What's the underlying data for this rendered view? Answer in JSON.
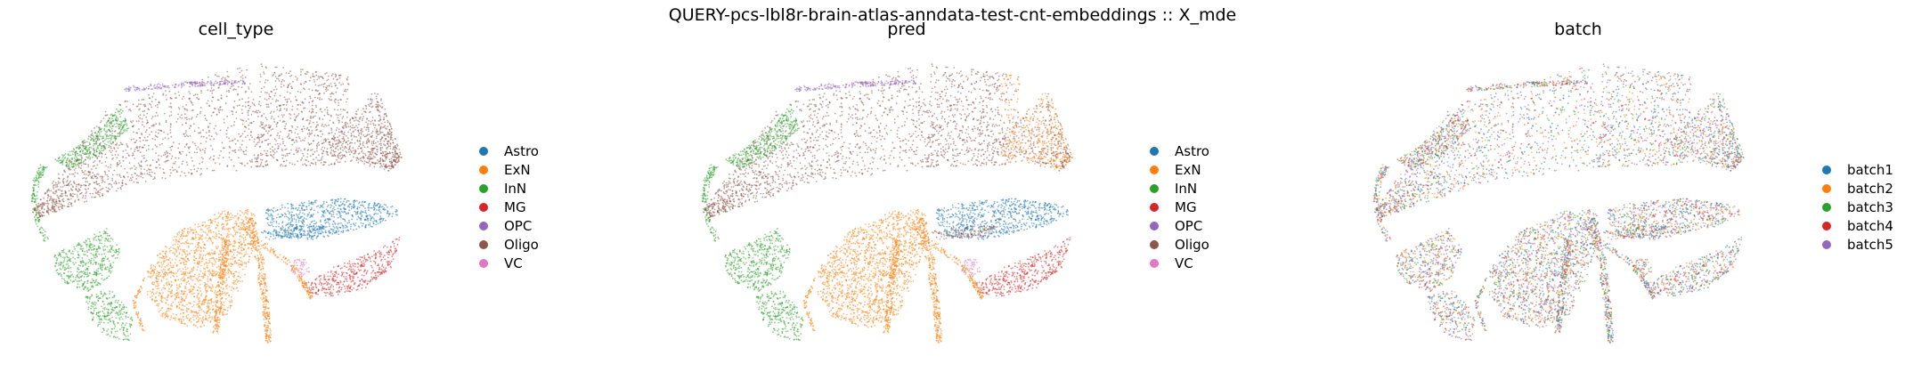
{
  "suptitle": "QUERY-pcs-lbl8r-brain-atlas-anndata-test-cnt-embeddings :: X_mde",
  "panels": [
    {
      "title": "cell_type",
      "legend": [
        "Astro",
        "ExN",
        "InN",
        "MG",
        "OPC",
        "Oligo",
        "VC"
      ]
    },
    {
      "title": "pred",
      "legend": [
        "Astro",
        "ExN",
        "InN",
        "MG",
        "OPC",
        "Oligo",
        "VC"
      ]
    },
    {
      "title": "batch",
      "legend": [
        "batch1",
        "batch2",
        "batch3",
        "batch4",
        "batch5"
      ]
    }
  ],
  "colors": {
    "Astro": "#1f77b4",
    "ExN": "#ff7f0e",
    "InN": "#2ca02c",
    "MG": "#d62728",
    "OPC": "#9467bd",
    "Oligo": "#8c564b",
    "VC": "#e377c2",
    "batch1": "#1f77b4",
    "batch2": "#ff7f0e",
    "batch3": "#2ca02c",
    "batch4": "#d62728",
    "batch5": "#9467bd"
  },
  "chart_data": [
    {
      "type": "scatter",
      "title": "cell_type",
      "color_by": "cell_type",
      "categories": [
        "Astro",
        "ExN",
        "InN",
        "MG",
        "OPC",
        "Oligo",
        "VC"
      ],
      "axes": "off",
      "legend": "right"
    },
    {
      "type": "scatter",
      "title": "pred",
      "color_by": "pred",
      "categories": [
        "Astro",
        "ExN",
        "InN",
        "MG",
        "OPC",
        "Oligo",
        "VC"
      ],
      "axes": "off",
      "legend": "right"
    },
    {
      "type": "scatter",
      "title": "batch",
      "color_by": "batch",
      "categories": [
        "batch1",
        "batch2",
        "batch3",
        "batch4",
        "batch5"
      ],
      "axes": "off",
      "legend": "right"
    }
  ]
}
